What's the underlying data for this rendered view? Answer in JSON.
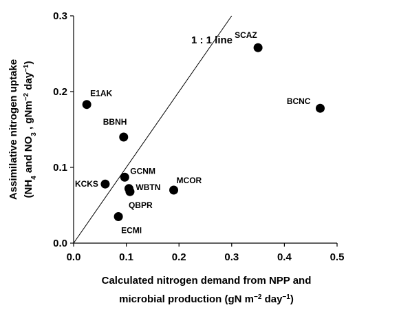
{
  "chart_data": {
    "type": "scatter",
    "x_label_lines": [
      [
        "Calculated nitrogen demand from NPP and"
      ],
      [
        "microbial production (gN m",
        "−2",
        " day",
        "−1",
        ")"
      ]
    ],
    "y_label_lines": [
      [
        "Assimilative nitrogen uptake"
      ],
      [
        "(NH",
        "4",
        " and NO",
        "3",
        " , gNm",
        "−2",
        " day",
        "−1",
        ")"
      ]
    ],
    "annotation": "1 : 1 line",
    "color": "#000000",
    "labels": [
      "E1AK",
      "BBNH",
      "KCKS",
      "GCNM",
      "WBTN",
      "QBPR",
      "ECMI",
      "MCOR",
      "SCAZ",
      "BCNC"
    ],
    "x": [
      0.025,
      0.095,
      0.06,
      0.097,
      0.105,
      0.107,
      0.085,
      0.19,
      0.35,
      0.468
    ],
    "y": [
      0.183,
      0.14,
      0.078,
      0.087,
      0.072,
      0.068,
      0.035,
      0.07,
      0.258,
      0.178
    ],
    "xlim": [
      0.0,
      0.5
    ],
    "ylim": [
      0.0,
      0.3
    ],
    "xticks": [
      {
        "value": 0,
        "label": "0.0"
      },
      0.1,
      0.2,
      0.3,
      0.4,
      0.5
    ],
    "yticks": [
      {
        "value": 0,
        "label": "0.0"
      },
      0.1,
      0.2,
      0.3
    ]
  }
}
